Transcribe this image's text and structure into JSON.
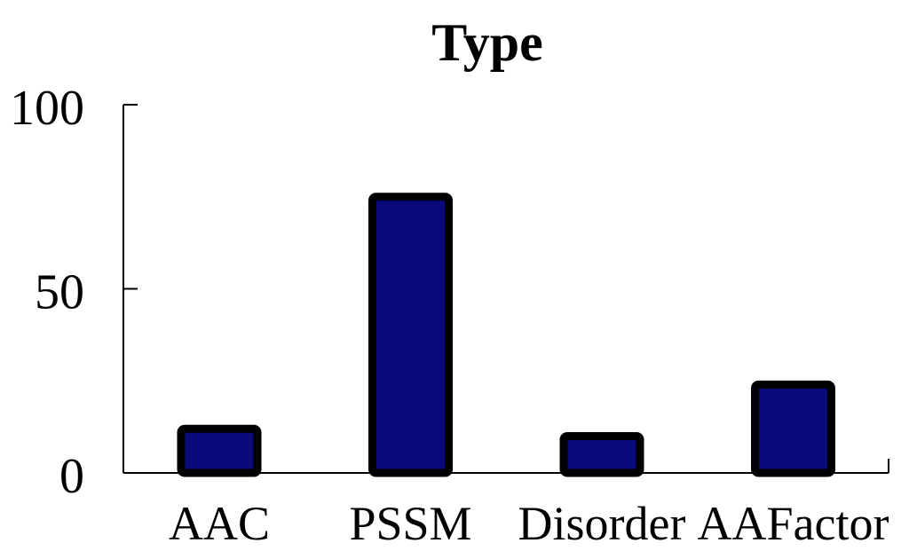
{
  "chart_data": {
    "type": "bar",
    "title": "Type",
    "xlabel": "",
    "ylabel": "",
    "categories": [
      "AAC",
      "PSSM",
      "Disorder",
      "AAFactor"
    ],
    "values": [
      12,
      75,
      10,
      24
    ],
    "ylim": [
      0,
      100
    ],
    "yticks": [
      0,
      50,
      100
    ],
    "ytick_labels": [
      "0",
      "50",
      "100"
    ],
    "grid": false,
    "legend": "none",
    "bar_color": "#0a0a7a",
    "bar_edge_color": "#000000"
  }
}
